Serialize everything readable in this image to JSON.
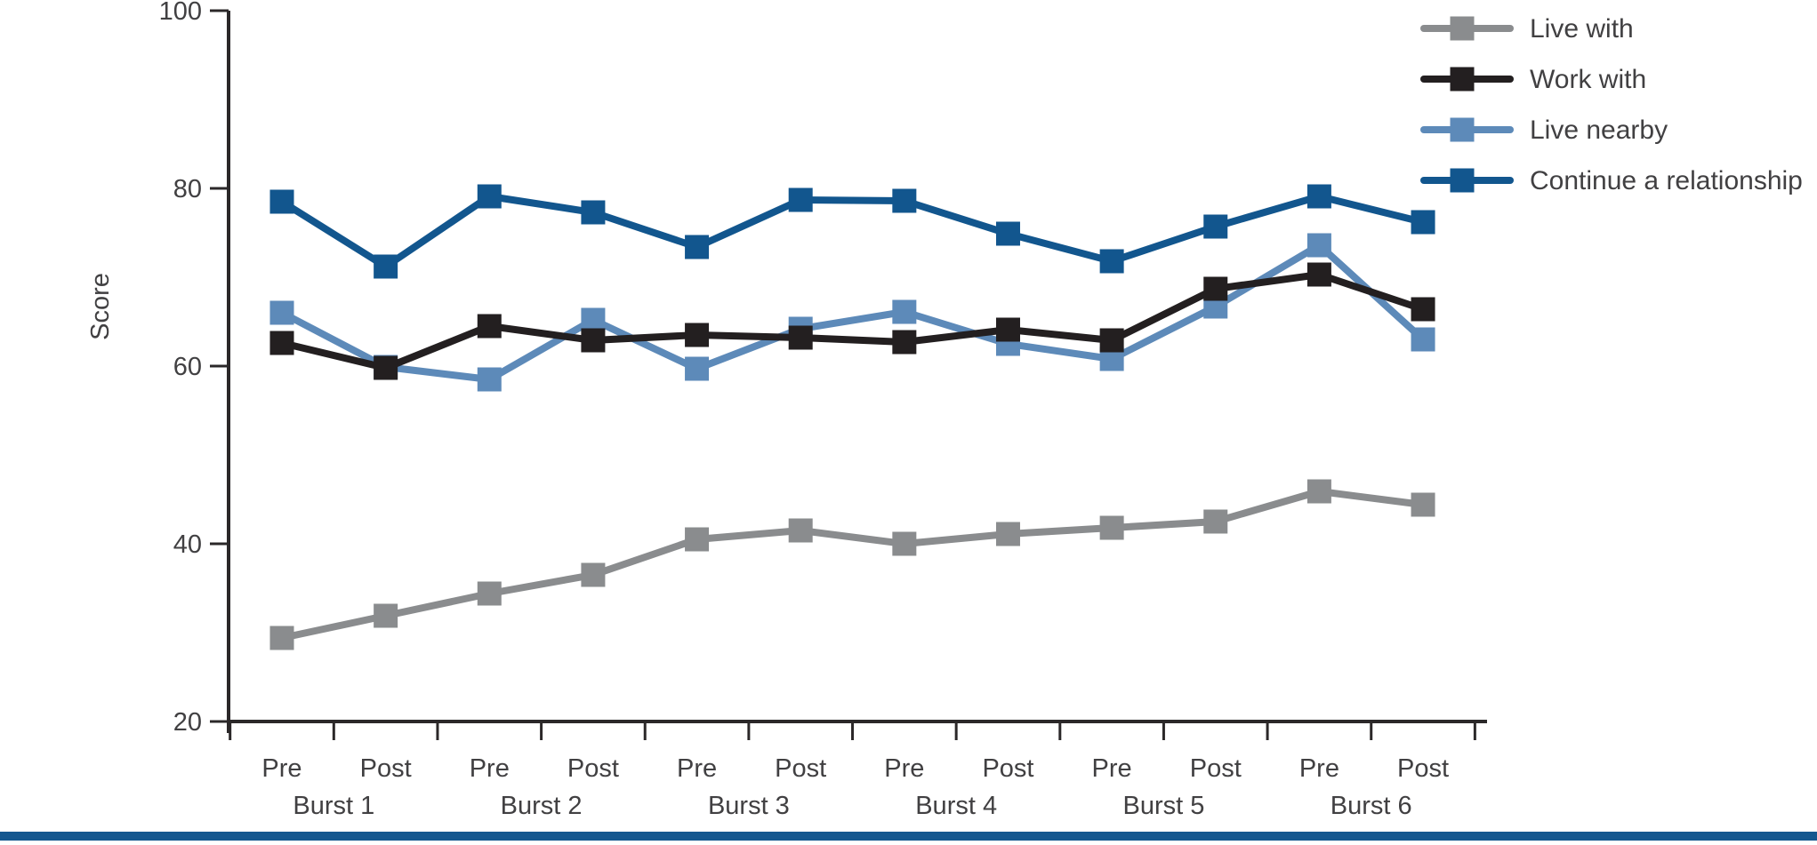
{
  "figure": {
    "ylabel": "Score",
    "bottom_bar_color": "#14578f",
    "axis_color": "#2b2829",
    "text_color": "#414042"
  },
  "chart_data": {
    "type": "line",
    "x_tick_labels": [
      "Pre",
      "Post",
      "Pre",
      "Post",
      "Pre",
      "Post",
      "Pre",
      "Post",
      "Pre",
      "Post",
      "Pre",
      "Post"
    ],
    "x_groups": [
      "Burst 1",
      "Burst 2",
      "Burst 3",
      "Burst 4",
      "Burst 5",
      "Burst 6"
    ],
    "ylabel": "Score",
    "ylim": [
      20,
      100
    ],
    "yticks": [
      20,
      40,
      60,
      80,
      100
    ],
    "grid": false,
    "legend_position": "top-right",
    "marker": "square",
    "series": [
      {
        "name": "Live with",
        "color": "#8a8c8e",
        "values": [
          29.4,
          31.9,
          34.4,
          36.5,
          40.5,
          41.5,
          40.0,
          41.1,
          41.8,
          42.5,
          45.9,
          44.4
        ]
      },
      {
        "name": "Work with",
        "color": "#231f20",
        "values": [
          62.6,
          59.8,
          64.5,
          62.9,
          63.5,
          63.2,
          62.7,
          64.1,
          62.9,
          68.7,
          70.3,
          66.4
        ]
      },
      {
        "name": "Live nearby",
        "color": "#5d8ab9",
        "values": [
          66.0,
          59.9,
          58.5,
          65.2,
          59.7,
          64.2,
          66.1,
          62.5,
          60.8,
          66.7,
          73.6,
          63.0
        ]
      },
      {
        "name": "Continue a relationship",
        "color": "#12568e",
        "values": [
          78.5,
          71.2,
          79.1,
          77.3,
          73.4,
          78.7,
          78.6,
          74.9,
          71.8,
          75.7,
          79.1,
          76.2
        ]
      }
    ]
  }
}
